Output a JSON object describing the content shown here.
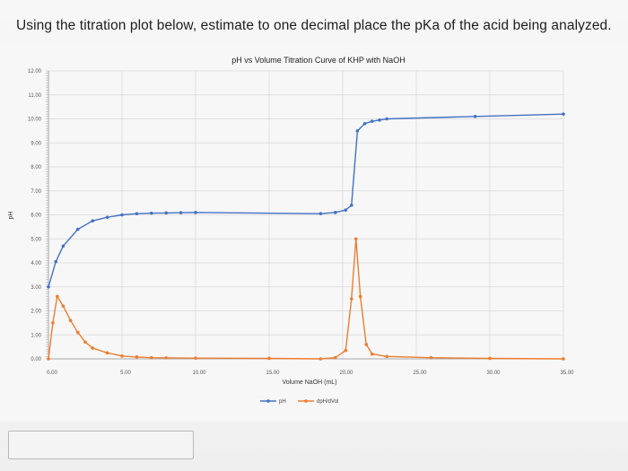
{
  "question": "Using the titration plot below, estimate to one decimal place the pKa of the acid being analyzed.",
  "answer_box": {
    "value": ""
  },
  "chart_data": {
    "type": "line",
    "title": "pH vs Volume Titration Curve of KHP with NaOH",
    "xlabel": "Volume NaOH (mL)",
    "ylabel": "pH",
    "xlim": [
      0,
      35
    ],
    "ylim": [
      0,
      12
    ],
    "x_ticks": [
      "0.00",
      "5.00",
      "10.00",
      "15.00",
      "20.00",
      "25.00",
      "30.00",
      "35.00"
    ],
    "y_ticks": [
      "0.00",
      "1.00",
      "2.00",
      "3.00",
      "4.00",
      "5.00",
      "6.00",
      "7.00",
      "8.00",
      "9.00",
      "10.00",
      "11.00",
      "12.00"
    ],
    "grid": true,
    "legend_position": "bottom-center",
    "series": [
      {
        "name": "pH",
        "color": "#4472c4",
        "points": [
          [
            0.0,
            3.0
          ],
          [
            0.5,
            4.05
          ],
          [
            1.0,
            4.7
          ],
          [
            2.0,
            5.4
          ],
          [
            3.0,
            5.75
          ],
          [
            4.0,
            5.9
          ],
          [
            5.0,
            6.0
          ],
          [
            6.0,
            6.05
          ],
          [
            7.0,
            6.07
          ],
          [
            8.0,
            6.08
          ],
          [
            9.0,
            6.09
          ],
          [
            10.0,
            6.1
          ],
          [
            18.5,
            6.05
          ],
          [
            19.5,
            6.1
          ],
          [
            20.2,
            6.2
          ],
          [
            20.6,
            6.4
          ],
          [
            21.0,
            9.5
          ],
          [
            21.5,
            9.8
          ],
          [
            22.0,
            9.9
          ],
          [
            22.5,
            9.95
          ],
          [
            23.0,
            10.0
          ],
          [
            29.0,
            10.1
          ],
          [
            35.0,
            10.2
          ]
        ]
      },
      {
        "name": "dpH/dVol",
        "color": "#ed7d31",
        "points": [
          [
            0.0,
            0.0
          ],
          [
            0.3,
            1.5
          ],
          [
            0.6,
            2.6
          ],
          [
            1.0,
            2.2
          ],
          [
            1.5,
            1.6
          ],
          [
            2.0,
            1.1
          ],
          [
            2.5,
            0.7
          ],
          [
            3.0,
            0.45
          ],
          [
            4.0,
            0.25
          ],
          [
            5.0,
            0.12
          ],
          [
            6.0,
            0.08
          ],
          [
            7.0,
            0.05
          ],
          [
            8.0,
            0.04
          ],
          [
            10.0,
            0.03
          ],
          [
            15.0,
            0.02
          ],
          [
            18.5,
            0.0
          ],
          [
            19.5,
            0.05
          ],
          [
            20.2,
            0.35
          ],
          [
            20.6,
            2.5
          ],
          [
            20.9,
            5.0
          ],
          [
            21.2,
            2.6
          ],
          [
            21.6,
            0.6
          ],
          [
            22.0,
            0.2
          ],
          [
            23.0,
            0.1
          ],
          [
            26.0,
            0.05
          ],
          [
            30.0,
            0.02
          ],
          [
            35.0,
            0.0
          ]
        ]
      }
    ]
  }
}
